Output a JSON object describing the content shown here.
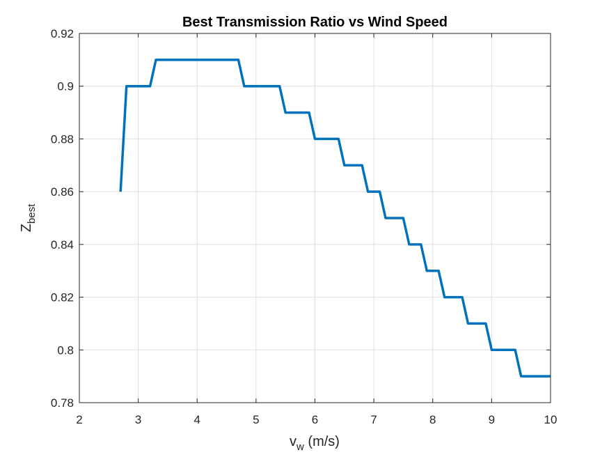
{
  "chart_data": {
    "type": "line",
    "title": "Best Transmission Ratio vs Wind Speed",
    "xlabel": {
      "main": "v",
      "sub": "w",
      "unit": " (m/s)"
    },
    "ylabel": {
      "main": "Z",
      "sub": "best"
    },
    "xlim": [
      2,
      10
    ],
    "ylim": [
      0.78,
      0.92
    ],
    "xticks": [
      2,
      3,
      4,
      5,
      6,
      7,
      8,
      9,
      10
    ],
    "yticks": [
      0.78,
      0.8,
      0.82,
      0.84,
      0.86,
      0.88,
      0.9,
      0.92
    ],
    "xtick_labels": [
      "2",
      "3",
      "4",
      "5",
      "6",
      "7",
      "8",
      "9",
      "10"
    ],
    "ytick_labels": [
      "0.78",
      "0.8",
      "0.82",
      "0.84",
      "0.86",
      "0.88",
      "0.9",
      "0.92"
    ],
    "grid": true,
    "line_color": "#0072BD",
    "series": [
      {
        "x": [
          2.7,
          2.8,
          3.2,
          3.3,
          4.7,
          4.8,
          5.4,
          5.5,
          5.9,
          6.0,
          6.4,
          6.5,
          6.8,
          6.9,
          7.1,
          7.2,
          7.5,
          7.6,
          7.8,
          7.9,
          8.1,
          8.2,
          8.5,
          8.6,
          8.9,
          9.0,
          9.4,
          9.5,
          10.0
        ],
        "y": [
          0.86,
          0.9,
          0.9,
          0.91,
          0.91,
          0.9,
          0.9,
          0.89,
          0.89,
          0.88,
          0.88,
          0.87,
          0.87,
          0.86,
          0.86,
          0.85,
          0.85,
          0.84,
          0.84,
          0.83,
          0.83,
          0.82,
          0.82,
          0.81,
          0.81,
          0.8,
          0.8,
          0.79,
          0.79
        ]
      }
    ]
  }
}
